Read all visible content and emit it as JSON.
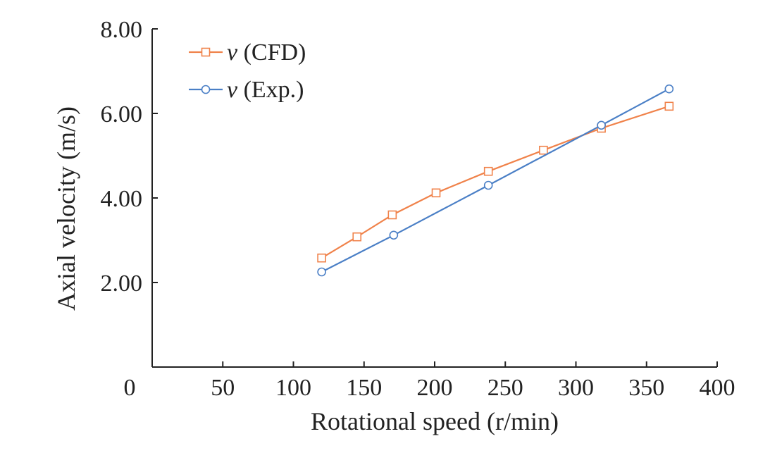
{
  "chart_data": {
    "type": "line",
    "title": "",
    "xlabel": "Rotational speed (r/min)",
    "ylabel": "Axial velocity (m/s)",
    "xlim": [
      0,
      400
    ],
    "ylim": [
      0,
      8
    ],
    "x_ticks": [
      {
        "value": 0,
        "label": "0"
      },
      {
        "value": 50,
        "label": "50"
      },
      {
        "value": 100,
        "label": "100"
      },
      {
        "value": 150,
        "label": "150"
      },
      {
        "value": 200,
        "label": "200"
      },
      {
        "value": 250,
        "label": "250"
      },
      {
        "value": 300,
        "label": "300"
      },
      {
        "value": 350,
        "label": "350"
      },
      {
        "value": 400,
        "label": "400"
      }
    ],
    "y_ticks": [
      {
        "value": 2,
        "label": "2.00"
      },
      {
        "value": 4,
        "label": "4.00"
      },
      {
        "value": 6,
        "label": "6.00"
      },
      {
        "value": 8,
        "label": "8.00"
      }
    ],
    "grid": false,
    "legend_position": "top-left",
    "series": [
      {
        "name": "CFD",
        "legend_symbol": "v",
        "legend_suffix": " (CFD)",
        "marker": "square",
        "color": "#f0824a",
        "x": [
          120,
          145,
          170,
          201,
          238,
          277,
          318,
          366
        ],
        "y": [
          2.58,
          3.08,
          3.6,
          4.12,
          4.63,
          5.13,
          5.65,
          6.17
        ]
      },
      {
        "name": "Exp.",
        "legend_symbol": "v",
        "legend_suffix": " (Exp.)",
        "marker": "circle",
        "color": "#4a7fc6",
        "x": [
          120,
          171,
          238,
          318,
          366
        ],
        "y": [
          2.25,
          3.12,
          4.3,
          5.72,
          6.58
        ]
      }
    ]
  }
}
